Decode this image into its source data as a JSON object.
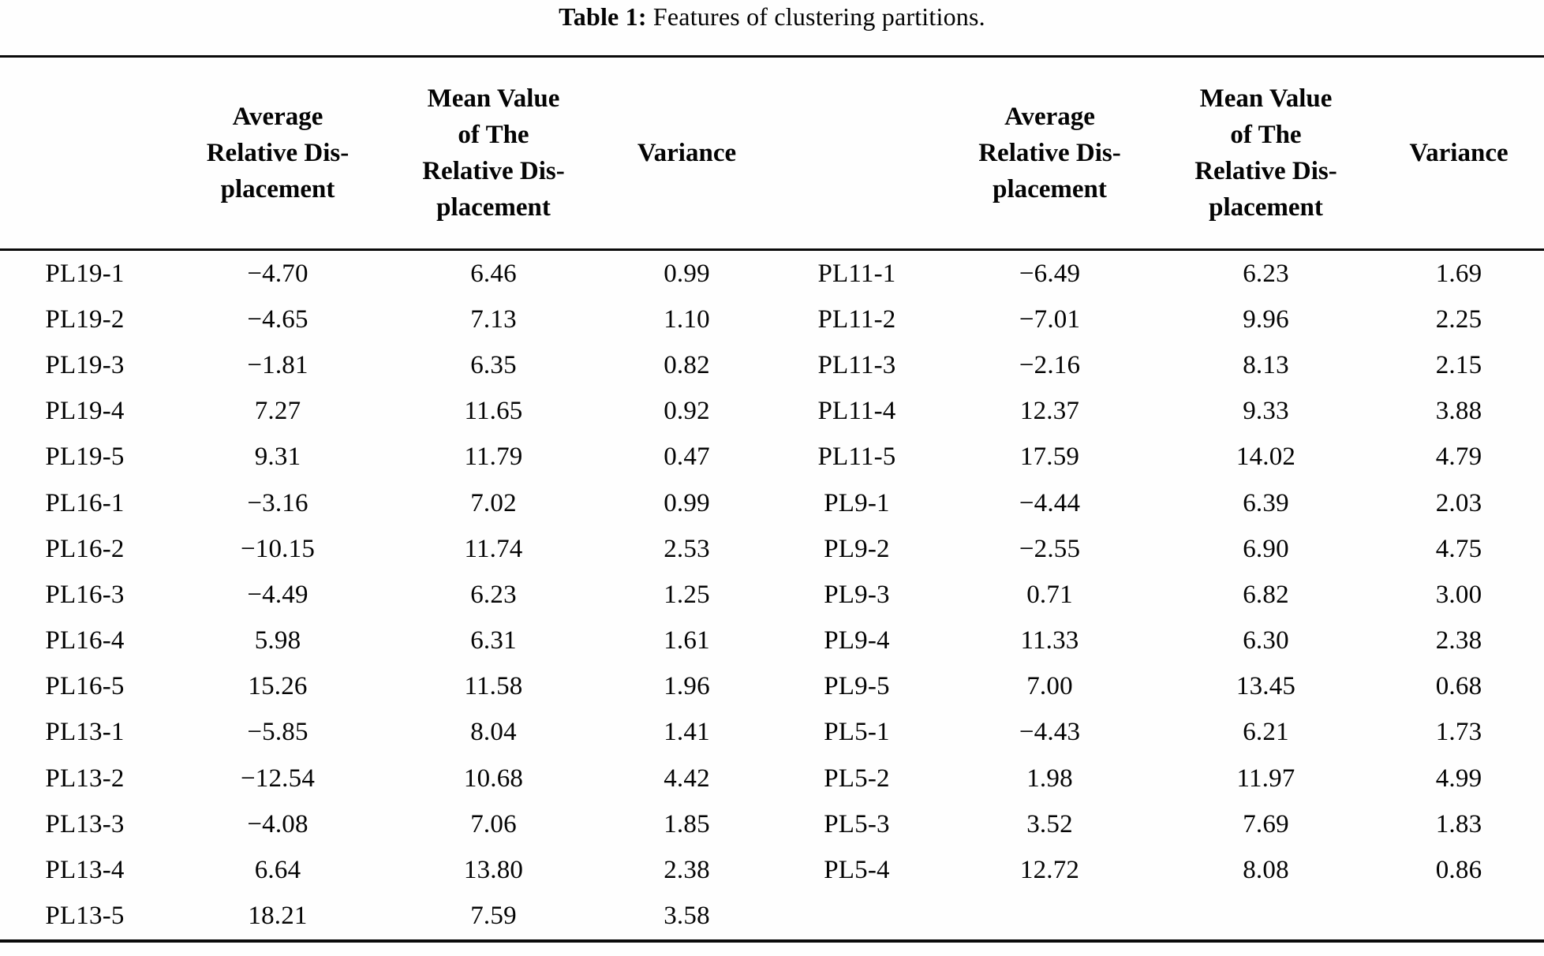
{
  "caption": {
    "label": "Table 1:",
    "text": "Features of clustering partitions."
  },
  "chart_data": {
    "type": "table",
    "title": "Table 1: Features of clustering partitions.",
    "headers": [
      "",
      "Average\nRelative Dis-\nplacement",
      "Mean Value\nof The\nRelative Dis-\nplacement",
      "Variance",
      "",
      "Average\nRelative Dis-\nplacement",
      "Mean Value\nof The\nRelative Dis-\nplacement",
      "Variance"
    ],
    "rows": [
      [
        "PL19-1",
        "−4.70",
        "6.46",
        "0.99",
        "PL11-1",
        "−6.49",
        "6.23",
        "1.69"
      ],
      [
        "PL19-2",
        "−4.65",
        "7.13",
        "1.10",
        "PL11-2",
        "−7.01",
        "9.96",
        "2.25"
      ],
      [
        "PL19-3",
        "−1.81",
        "6.35",
        "0.82",
        "PL11-3",
        "−2.16",
        "8.13",
        "2.15"
      ],
      [
        "PL19-4",
        "7.27",
        "11.65",
        "0.92",
        "PL11-4",
        "12.37",
        "9.33",
        "3.88"
      ],
      [
        "PL19-5",
        "9.31",
        "11.79",
        "0.47",
        "PL11-5",
        "17.59",
        "14.02",
        "4.79"
      ],
      [
        "PL16-1",
        "−3.16",
        "7.02",
        "0.99",
        "PL9-1",
        "−4.44",
        "6.39",
        "2.03"
      ],
      [
        "PL16-2",
        "−10.15",
        "11.74",
        "2.53",
        "PL9-2",
        "−2.55",
        "6.90",
        "4.75"
      ],
      [
        "PL16-3",
        "−4.49",
        "6.23",
        "1.25",
        "PL9-3",
        "0.71",
        "6.82",
        "3.00"
      ],
      [
        "PL16-4",
        "5.98",
        "6.31",
        "1.61",
        "PL9-4",
        "11.33",
        "6.30",
        "2.38"
      ],
      [
        "PL16-5",
        "15.26",
        "11.58",
        "1.96",
        "PL9-5",
        "7.00",
        "13.45",
        "0.68"
      ],
      [
        "PL13-1",
        "−5.85",
        "8.04",
        "1.41",
        "PL5-1",
        "−4.43",
        "6.21",
        "1.73"
      ],
      [
        "PL13-2",
        "−12.54",
        "10.68",
        "4.42",
        "PL5-2",
        "1.98",
        "11.97",
        "4.99"
      ],
      [
        "PL13-3",
        "−4.08",
        "7.06",
        "1.85",
        "PL5-3",
        "3.52",
        "7.69",
        "1.83"
      ],
      [
        "PL13-4",
        "6.64",
        "13.80",
        "2.38",
        "PL5-4",
        "12.72",
        "8.08",
        "0.86"
      ],
      [
        "PL13-5",
        "18.21",
        "7.59",
        "3.58",
        "",
        "",
        "",
        ""
      ]
    ]
  }
}
